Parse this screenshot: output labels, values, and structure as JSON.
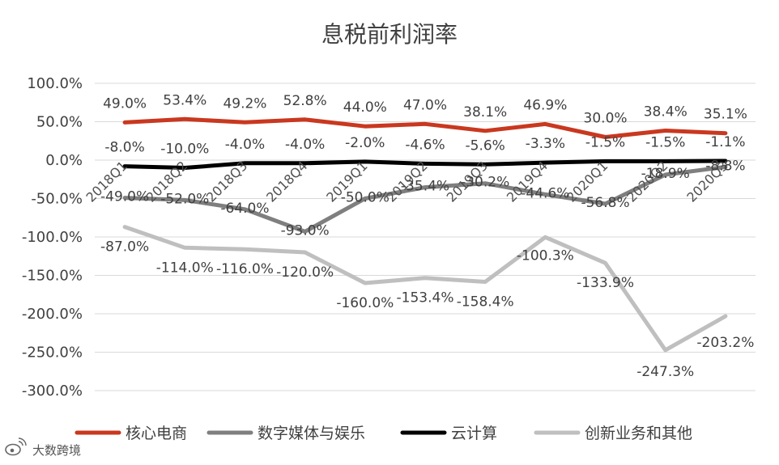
{
  "chart_data": {
    "type": "line",
    "title": "息税前利润率",
    "xlabel": "",
    "ylabel": "",
    "categories": [
      "2018Q1",
      "2018Q2",
      "2018Q3",
      "2018Q4",
      "2019Q1",
      "2019Q2",
      "2019Q3",
      "2019Q4",
      "2020Q1",
      "2020Q2",
      "2020Q3"
    ],
    "ylim": [
      -300,
      100
    ],
    "ytick_labels": [
      "100.0%",
      "50.0%",
      "0.0%",
      "-50.0%",
      "-100.0%",
      "-150.0%",
      "-200.0%",
      "-250.0%",
      "-300.0%"
    ],
    "grid": true,
    "legend_position": "bottom",
    "series": [
      {
        "name": "核心电商",
        "color": "#C9381F",
        "values": [
          49.0,
          53.4,
          49.2,
          52.8,
          44.0,
          47.0,
          38.1,
          46.9,
          30.0,
          38.4,
          35.1
        ],
        "labels": [
          "49.0%",
          "53.4%",
          "49.2%",
          "52.8%",
          "44.0%",
          "47.0%",
          "38.1%",
          "46.9%",
          "30.0%",
          "38.4%",
          "35.1%"
        ]
      },
      {
        "name": "数字媒体与娱乐",
        "color": "#7F7F7F",
        "values": [
          -49.0,
          -52.0,
          -64.0,
          -93.0,
          -50.0,
          -35.4,
          -30.2,
          -44.6,
          -56.8,
          -18.9,
          -8.8
        ],
        "labels": [
          "-49.0%",
          "-52.0%",
          "-64.0%",
          "-93.0%",
          "-50.0%",
          "-35.4%",
          "-30.2%",
          "-44.6%",
          "-56.8%",
          "-18.9%",
          "-8.8%"
        ]
      },
      {
        "name": "云计算",
        "color": "#000000",
        "values": [
          -8.0,
          -10.0,
          -4.0,
          -4.0,
          -2.0,
          -4.6,
          -5.6,
          -3.3,
          -1.5,
          -1.5,
          -1.1
        ],
        "labels": [
          "-8.0%",
          "-10.0%",
          "-4.0%",
          "-4.0%",
          "-2.0%",
          "-4.6%",
          "-5.6%",
          "-3.3%",
          "-1.5%",
          "-1.5%",
          "-1.1%"
        ]
      },
      {
        "name": "创新业务和其他",
        "color": "#BFBFBF",
        "values": [
          -87.0,
          -114.0,
          -116.0,
          -120.0,
          -160.0,
          -153.4,
          -158.4,
          -100.3,
          -133.9,
          -247.3,
          -203.2
        ],
        "labels": [
          "-87.0%",
          "-114.0%",
          "-116.0%",
          "-120.0%",
          "-160.0%",
          "-153.4%",
          "-158.4%",
          "-100.3%",
          "-133.9%",
          "-247.3%",
          "-203.2%"
        ]
      }
    ]
  },
  "colors": {
    "grid": "#D9D9D9",
    "text": "#404040"
  },
  "watermark": {
    "text": "大数跨境",
    "icon": "weibo-logo-icon"
  }
}
